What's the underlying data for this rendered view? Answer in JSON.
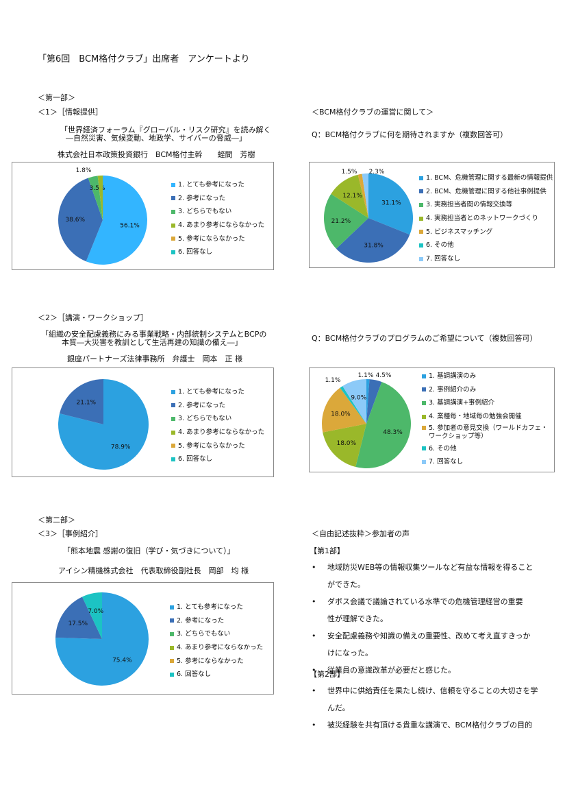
{
  "page_title": "「第6回　BCM格付クラブ」出席者　アンケートより",
  "part1": "＜第一部＞",
  "part2": "＜第二部＞",
  "sec1": {
    "heading": "＜1＞［情報提供］",
    "talk_line1": "「世界経済フォーラム『グローバル・リスク研究』を読み解く",
    "talk_line2": "―自然災害、気候変動、地政学、サイバーの脅威―」",
    "speaker": "株式会社日本政策投資銀行　BCM格付主幹　　蛭間　芳樹"
  },
  "sec2": {
    "heading": "＜2＞［講演・ワークショップ］",
    "talk_line1": "「組織の安全配慮義務にみる事業戦略・内部統制システムとBCPの",
    "talk_line2": "本質―大災害を教訓として生活再建の知識の備え―」",
    "speaker": "銀座パートナーズ法律事務所　弁護士　岡本　正 様"
  },
  "sec3": {
    "heading": "＜3＞［事例紹介］",
    "talk_line1": "「熊本地震 感謝の復旧（学び・気づきについて）」",
    "speaker": "アイシン精機株式会社　代表取締役副社長　岡部　均 様"
  },
  "ops": {
    "heading": "＜BCM格付クラブの運営に関して＞",
    "q1": "Q：BCM格付クラブに何を期待されますか（複数回答可）",
    "q2": "Q：BCM格付クラブのプログラムのご希望について（複数回答可）"
  },
  "voices": {
    "heading": "＜自由記述抜粋＞参加者の声",
    "part1": "【第1部】",
    "part2": "【第2部】",
    "bullet": "•",
    "items1": [
      [
        "地域防災WEB等の情報収集ツールなど有益な情報を得ること",
        "ができた。"
      ],
      [
        "ダボス会議で議論されている水準での危機管理経営の重要",
        "性が理解できた。"
      ],
      [
        "安全配慮義務や知識の備えの重要性、改めて考え直すきっか",
        "けになった。"
      ],
      [
        "従業員の意識改革が必要だと感じた。"
      ]
    ],
    "items2": [
      [
        "世界中に供給責任を果たし続け、信頼を守ることの大切さを学",
        "んだ。"
      ],
      [
        "被災経験を共有頂ける貴重な講演で、BCM格付クラブの目的"
      ]
    ]
  },
  "chart_data": [
    {
      "type": "pie",
      "categories": [
        "1. とても参考になった",
        "2. 参考になった",
        "3. どちらでもない",
        "4. あまり参考にならなかった",
        "5. 参考にならなかった",
        "6. 回答なし"
      ],
      "values": [
        56.1,
        38.6,
        3.5,
        1.8,
        0,
        0
      ],
      "labels": [
        "56.1%",
        "38.6%",
        "3.5%",
        "1.8%",
        "",
        ""
      ],
      "colors": [
        "#33b5ff",
        "#3b6fb6",
        "#4db86a",
        "#9ab82a",
        "#dba83a",
        "#1cc3c3"
      ],
      "legend": "right"
    },
    {
      "type": "pie",
      "categories": [
        "1. とても参考になった",
        "2. 参考になった",
        "3. どちらでもない",
        "4. あまり参考にならなかった",
        "5. 参考にならなかった",
        "6. 回答なし"
      ],
      "values": [
        78.9,
        21.1,
        0,
        0,
        0,
        0
      ],
      "labels": [
        "78.9%",
        "21.1%",
        "",
        "",
        "",
        ""
      ],
      "colors": [
        "#2ca1e0",
        "#3b6fb6",
        "#4db86a",
        "#9ab82a",
        "#dba83a",
        "#1cc3c3"
      ],
      "legend": "right"
    },
    {
      "type": "pie",
      "categories": [
        "1. とても参考になった",
        "2. 参考になった",
        "3. どちらでもない",
        "4. あまり参考にならなかった",
        "5. 参考にならなかった",
        "6. 回答なし"
      ],
      "values": [
        75.4,
        17.5,
        0,
        0,
        0,
        7.0
      ],
      "labels": [
        "75.4%",
        "17.5%",
        "",
        "",
        "",
        "7.0%"
      ],
      "colors": [
        "#2ca1e0",
        "#3b6fb6",
        "#4db86a",
        "#9ab82a",
        "#dba83a",
        "#1cc3c3"
      ],
      "legend": "right"
    },
    {
      "type": "pie",
      "categories": [
        "1. BCM、危機管理に関する最新の情報提供",
        "2. BCM、危機管理に関する他社事例提供",
        "3. 実務担当者間の情報交換等",
        "4. 実務担当者とのネットワークづくり",
        "5. ビジネスマッチング",
        "6. その他",
        "7. 回答なし"
      ],
      "values": [
        31.1,
        31.8,
        21.2,
        12.1,
        1.5,
        0,
        2.3
      ],
      "labels": [
        "31.1%",
        "31.8%",
        "21.2%",
        "12.1%",
        "1.5%",
        "",
        "2.3%"
      ],
      "colors": [
        "#2ca1e0",
        "#3b6fb6",
        "#4db86a",
        "#9ab82a",
        "#dba83a",
        "#1cc3c3",
        "#8ccaf8"
      ],
      "legend": "right"
    },
    {
      "type": "pie",
      "categories": [
        "1. 基調講演のみ",
        "2. 事例紹介のみ",
        "3. 基調講演+事例紹介",
        "4. 業種毎・地域毎の勉強会開催",
        "5. 参加者の意見交換（ワールドカフェ・ワークショップ等）",
        "6. その他",
        "7. 回答なし"
      ],
      "values": [
        1.1,
        4.5,
        48.3,
        18.0,
        18.0,
        1.1,
        9.0
      ],
      "labels": [
        "1.1%",
        "4.5%",
        "48.3%",
        "18.0%",
        "18.0%",
        "1.1%",
        "9.0%"
      ],
      "colors": [
        "#2ca1e0",
        "#3b6fb6",
        "#4db86a",
        "#9ab82a",
        "#dba83a",
        "#1cc3c3",
        "#8ccaf8"
      ],
      "legend": "right"
    }
  ]
}
